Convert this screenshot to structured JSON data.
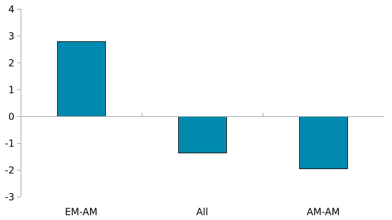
{
  "chart_data": {
    "type": "bar",
    "title": "",
    "xlabel": "",
    "ylabel": "",
    "categories": [
      "EM-AM",
      "All",
      "AM-AM"
    ],
    "values": [
      2.8,
      -1.35,
      -1.95
    ],
    "ylim": [
      -3,
      4
    ],
    "yticks": [
      "-3",
      "-2",
      "-1",
      "0",
      "1",
      "2",
      "3",
      "4"
    ],
    "grid": false,
    "legend": "none",
    "bar_color": "#0089ae"
  }
}
